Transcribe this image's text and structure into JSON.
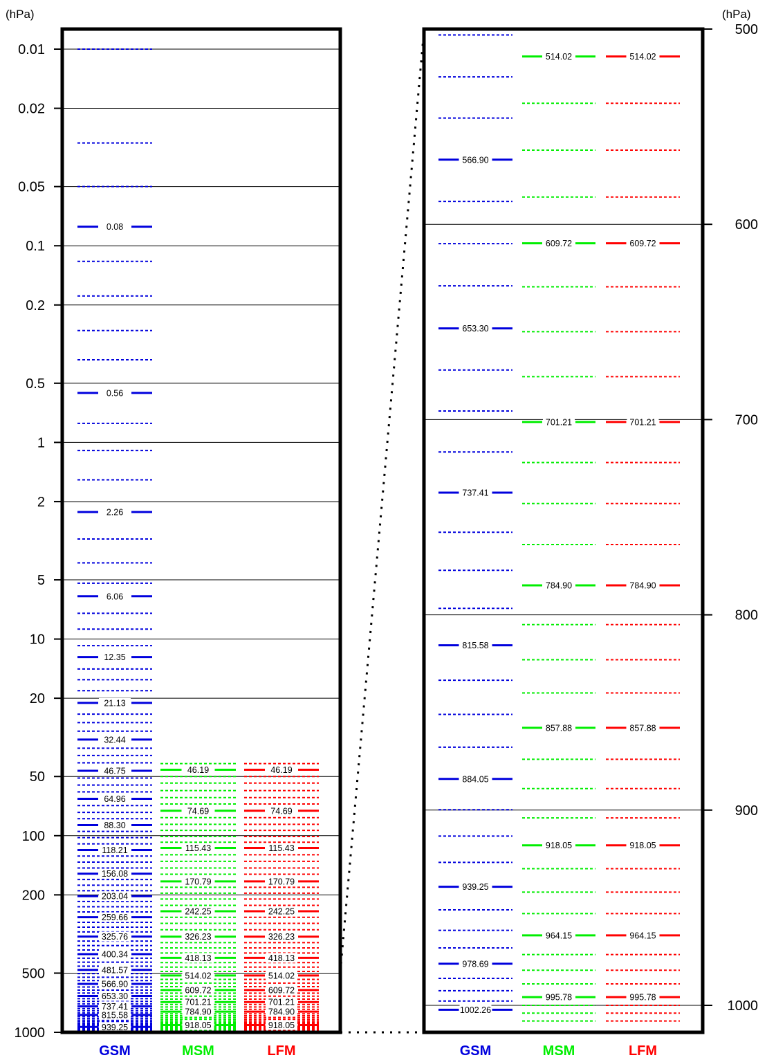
{
  "left_panel": {
    "unit": "(hPa)",
    "ticks": [
      "0.01",
      "0.02",
      "0.05",
      "0.1",
      "0.2",
      "0.5",
      "1",
      "2",
      "5",
      "10",
      "20",
      "50",
      "100",
      "200",
      "500",
      "1000"
    ],
    "models": [
      {
        "name": "GSM",
        "color": "#0000dd",
        "labeled": [
          "0.08",
          "0.56",
          "2.26",
          "6.06",
          "12.35",
          "21.13",
          "32.44",
          "46.75",
          "64.96",
          "88.30",
          "118.21",
          "156.08",
          "203.04",
          "259.66",
          "325.76",
          "400.34",
          "481.57",
          "566.90",
          "653.30",
          "737.41",
          "815.58",
          "939.25"
        ]
      },
      {
        "name": "MSM",
        "color": "#00ee00",
        "labeled": [
          "46.19",
          "74.69",
          "115.43",
          "170.79",
          "242.25",
          "326.23",
          "418.13",
          "514.02",
          "609.72",
          "701.21",
          "784.90",
          "918.05"
        ]
      },
      {
        "name": "LFM",
        "color": "#ff0000",
        "labeled": [
          "46.19",
          "74.69",
          "115.43",
          "170.79",
          "242.25",
          "326.23",
          "418.13",
          "514.02",
          "609.72",
          "701.21",
          "784.90",
          "918.05"
        ]
      }
    ]
  },
  "right_panel": {
    "unit": "(hPa)",
    "ticks": [
      "500",
      "600",
      "700",
      "800",
      "900",
      "1000"
    ],
    "models": [
      {
        "name": "GSM",
        "color": "#0000dd",
        "labeled": [
          "566.90",
          "653.30",
          "737.41",
          "815.58",
          "884.05",
          "939.25",
          "978.69",
          "1002.26"
        ]
      },
      {
        "name": "MSM",
        "color": "#00ee00",
        "labeled": [
          "514.02",
          "609.72",
          "701.21",
          "784.90",
          "857.88",
          "918.05",
          "964.15",
          "995.78"
        ]
      },
      {
        "name": "LFM",
        "color": "#ff0000",
        "labeled": [
          "514.02",
          "609.72",
          "701.21",
          "784.90",
          "857.88",
          "918.05",
          "964.15",
          "995.78"
        ]
      }
    ]
  },
  "chart_data": [
    {
      "type": "level-diagram",
      "scale": "log",
      "ylabel": "(hPa)",
      "ylim": [
        0.01,
        1000
      ],
      "series": [
        {
          "name": "GSM",
          "levels": [
            0.01,
            0.03,
            0.05,
            0.08,
            0.12,
            0.18,
            0.27,
            0.38,
            0.56,
            0.8,
            1.1,
            1.55,
            2.26,
            3.1,
            4.1,
            5.2,
            6.06,
            7.4,
            8.9,
            10.8,
            12.35,
            14.2,
            16.1,
            18.3,
            21.13,
            24.1,
            26.6,
            29.4,
            32.44,
            35.9,
            39.1,
            42.6,
            46.75,
            50.9,
            55.3,
            59.9,
            64.96,
            70.3,
            76.1,
            82.0,
            88.3,
            95.1,
            102.3,
            110.0,
            118.21,
            127.0,
            136.3,
            146.0,
            156.08,
            167.0,
            178.6,
            190.6,
            203.04,
            216.1,
            229.8,
            244.3,
            259.66,
            275.8,
            292.0,
            308.5,
            325.76,
            343.7,
            362.3,
            381.2,
            400.34,
            420.0,
            440.0,
            460.6,
            481.57,
            503.0,
            524.5,
            545.6,
            566.9,
            588.3,
            609.9,
            631.5,
            653.3,
            674.6,
            695.6,
            716.6,
            737.41,
            757.7,
            777.2,
            796.7,
            815.58,
            833.5,
            851.0,
            867.8,
            884.05,
            899.8,
            913.3,
            926.8,
            939.25,
            951.1,
            961.6,
            970.6,
            978.69,
            986.2,
            992.5,
            997.8,
            1002.26
          ]
        },
        {
          "name": "MSM",
          "levels": [
            43.0,
            46.19,
            50.0,
            54.0,
            59.0,
            64.0,
            69.0,
            74.69,
            81.0,
            87.5,
            94.0,
            101.0,
            108.0,
            115.43,
            125.0,
            135.0,
            146.0,
            157.0,
            170.79,
            183.0,
            196.0,
            210.0,
            226.0,
            242.25,
            260.0,
            279.0,
            301.0,
            326.23,
            350.0,
            372.0,
            395.0,
            418.13,
            442.0,
            466.0,
            490.0,
            514.02,
            538.0,
            562.0,
            586.0,
            609.72,
            632.0,
            655.0,
            678.0,
            701.21,
            722.0,
            743.0,
            764.0,
            784.9,
            805.0,
            823.0,
            840.0,
            857.88,
            874.0,
            889.0,
            904.0,
            918.05,
            930.0,
            942.0,
            953.0,
            964.15,
            974.0,
            982.0,
            989.0,
            995.78,
            1000.0,
            1004.0,
            1008.0
          ]
        },
        {
          "name": "LFM",
          "levels": [
            43.0,
            46.19,
            50.0,
            54.0,
            59.0,
            64.0,
            69.0,
            74.69,
            81.0,
            87.5,
            94.0,
            101.0,
            108.0,
            115.43,
            125.0,
            135.0,
            146.0,
            157.0,
            170.79,
            183.0,
            196.0,
            210.0,
            226.0,
            242.25,
            260.0,
            279.0,
            301.0,
            326.23,
            350.0,
            372.0,
            395.0,
            418.13,
            442.0,
            466.0,
            490.0,
            514.02,
            538.0,
            562.0,
            586.0,
            609.72,
            632.0,
            655.0,
            678.0,
            701.21,
            722.0,
            743.0,
            764.0,
            784.9,
            805.0,
            823.0,
            840.0,
            857.88,
            874.0,
            889.0,
            904.0,
            918.05,
            930.0,
            942.0,
            953.0,
            964.15,
            974.0,
            982.0,
            989.0,
            995.78,
            1000.0,
            1004.0,
            1008.0
          ]
        }
      ]
    },
    {
      "type": "level-diagram",
      "scale": "linear",
      "ylabel": "(hPa)",
      "ylim": [
        500,
        1020
      ],
      "series": [
        {
          "name": "GSM",
          "levels": [
            503.0,
            524.5,
            545.6,
            566.9,
            588.3,
            609.9,
            631.5,
            653.3,
            674.6,
            695.6,
            716.6,
            737.41,
            757.7,
            777.2,
            796.7,
            815.58,
            833.5,
            851.0,
            867.8,
            884.05,
            899.8,
            913.3,
            926.8,
            939.25,
            951.1,
            961.6,
            970.6,
            978.69,
            986.2,
            992.5,
            997.8,
            1002.26
          ]
        },
        {
          "name": "MSM",
          "levels": [
            514.02,
            538.0,
            562.0,
            586.0,
            609.72,
            632.0,
            655.0,
            678.0,
            701.21,
            722.0,
            743.0,
            764.0,
            784.9,
            805.0,
            823.0,
            840.0,
            857.88,
            874.0,
            889.0,
            904.0,
            918.05,
            930.0,
            942.0,
            953.0,
            964.15,
            974.0,
            982.0,
            989.0,
            995.78,
            1000.0,
            1004.0,
            1008.0
          ]
        },
        {
          "name": "LFM",
          "levels": [
            514.02,
            538.0,
            562.0,
            586.0,
            609.72,
            632.0,
            655.0,
            678.0,
            701.21,
            722.0,
            743.0,
            764.0,
            784.9,
            805.0,
            823.0,
            840.0,
            857.88,
            874.0,
            889.0,
            904.0,
            918.05,
            930.0,
            942.0,
            953.0,
            964.15,
            974.0,
            982.0,
            989.0,
            995.78,
            1000.0,
            1004.0,
            1008.0
          ]
        }
      ]
    }
  ]
}
